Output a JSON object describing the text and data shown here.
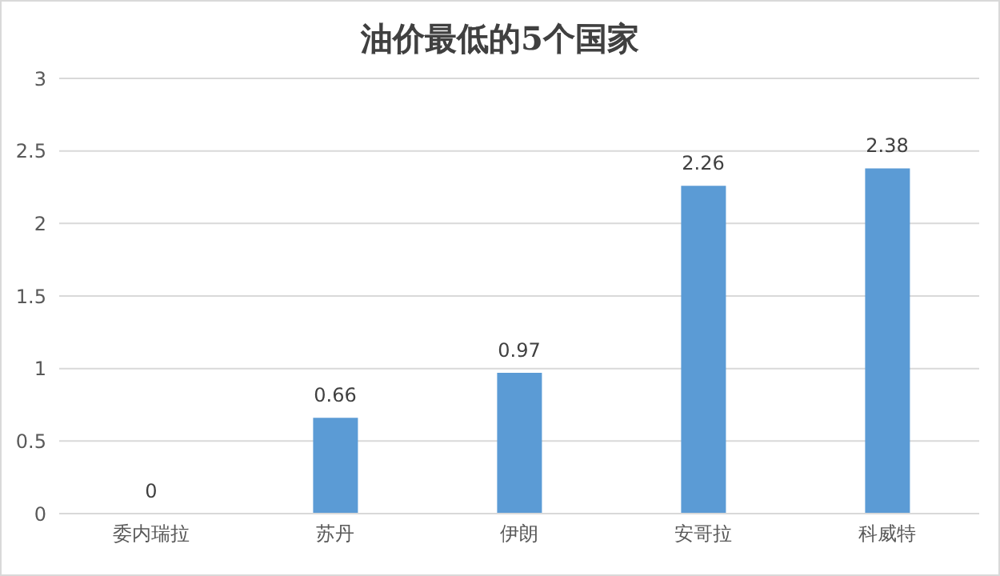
{
  "chart_data": {
    "type": "bar",
    "title": "油价最低的5个国家",
    "categories": [
      "委内瑞拉",
      "苏丹",
      "伊朗",
      "安哥拉",
      "科威特"
    ],
    "values": [
      0,
      0.66,
      0.97,
      2.26,
      2.38
    ],
    "color": "#5b9bd5",
    "ylim": [
      0,
      3
    ],
    "yticks": [
      0,
      0.5,
      1,
      1.5,
      2,
      2.5,
      3
    ],
    "grid": "y",
    "data_labels": true
  }
}
